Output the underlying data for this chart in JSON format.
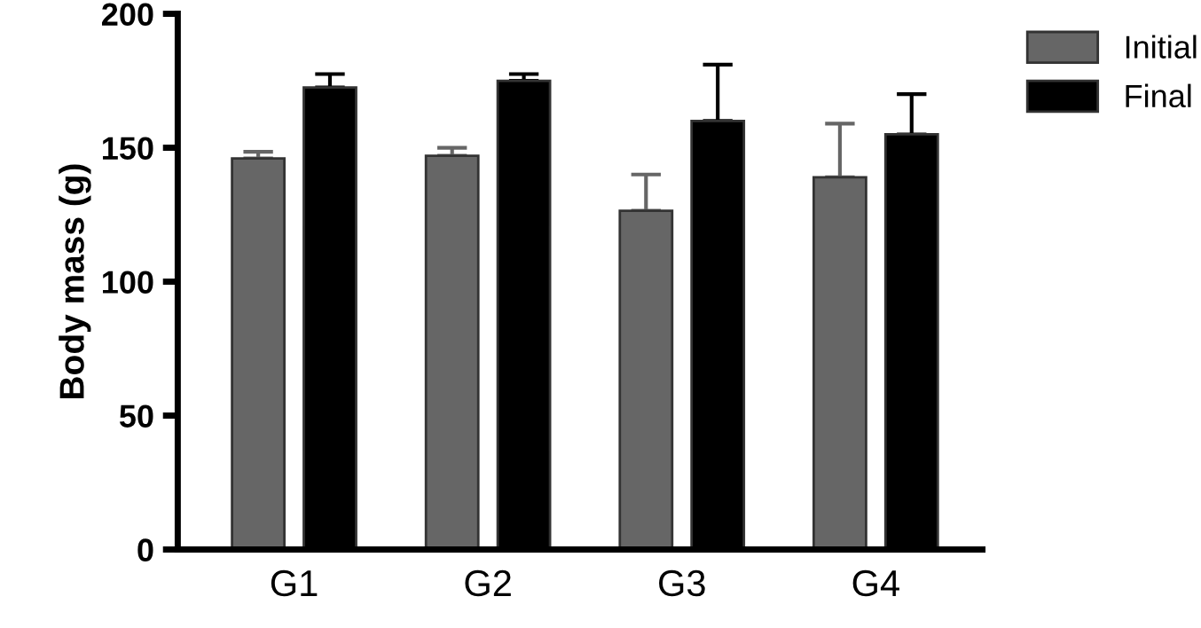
{
  "chart_data": {
    "type": "bar",
    "ylabel": "Body mass (g)",
    "categories": [
      "G1",
      "G2",
      "G3",
      "G4"
    ],
    "series": [
      {
        "name": "Initial",
        "color": "#666666",
        "values": [
          146,
          147,
          126.5,
          139
        ],
        "errors": [
          [
            146,
            148.5
          ],
          [
            147,
            150
          ],
          [
            126.5,
            140
          ],
          [
            139,
            159
          ]
        ]
      },
      {
        "name": "Final",
        "color": "#000000",
        "values": [
          172.5,
          175,
          160,
          155
        ],
        "errors": [
          [
            172.5,
            177.5
          ],
          [
            175,
            177.5
          ],
          [
            160,
            181
          ],
          [
            155,
            170
          ]
        ]
      }
    ],
    "ylim": [
      0,
      200
    ],
    "yticks": [
      0,
      50,
      100,
      150,
      200
    ],
    "grid": false,
    "legend": "top right"
  }
}
